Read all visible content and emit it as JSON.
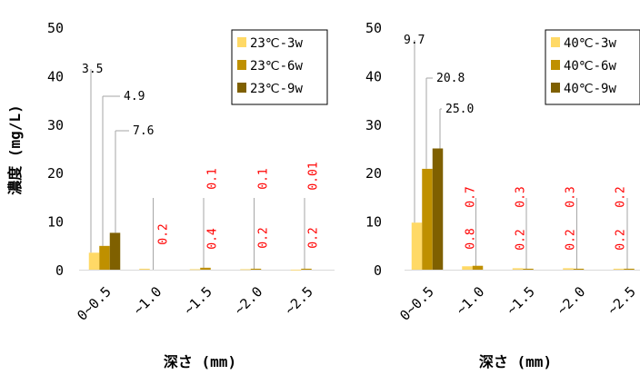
{
  "chart_data": [
    {
      "type": "bar",
      "categories": [
        "0~0.5",
        "~1.0",
        "~1.5",
        "~2.0",
        "~2.5"
      ],
      "ylabel": "濃度 (mg/L)",
      "xlabel": "深さ (mm)",
      "ylim": [
        0,
        50
      ],
      "yticks": [
        "0",
        "10",
        "20",
        "30",
        "40",
        "50"
      ],
      "legend_position": "top-right",
      "series": [
        {
          "name": "23℃-3w",
          "color": "#ffd966",
          "values": [
            3.5,
            0.2,
            0.1,
            0.1,
            0.01
          ],
          "labels": [
            "3.5",
            "0.2",
            "0.1",
            "0.1",
            "0.01"
          ]
        },
        {
          "name": "23℃-6w",
          "color": "#bf9000",
          "values": [
            4.9,
            0,
            0.4,
            0.2,
            0.2
          ],
          "labels": [
            "4.9",
            "",
            "0.4",
            "0.2",
            "0.2"
          ]
        },
        {
          "name": "23℃-9w",
          "color": "#7f6000",
          "values": [
            7.6,
            0,
            0,
            0,
            0
          ],
          "labels": [
            "7.6",
            "",
            "",
            "",
            ""
          ]
        }
      ]
    },
    {
      "type": "bar",
      "categories": [
        "0~0.5",
        "~1.0",
        "~1.5",
        "~2.0",
        "~2.5"
      ],
      "ylabel": "",
      "xlabel": "深さ (mm)",
      "ylim": [
        0,
        50
      ],
      "yticks": [
        "0",
        "10",
        "20",
        "30",
        "40",
        "50"
      ],
      "legend_position": "top-right",
      "series": [
        {
          "name": "40℃-3w",
          "color": "#ffd966",
          "values": [
            9.7,
            0.7,
            0.3,
            0.3,
            0.2
          ],
          "labels": [
            "9.7",
            "0.7",
            "0.3",
            "0.3",
            "0.2"
          ]
        },
        {
          "name": "40℃-6w",
          "color": "#bf9000",
          "values": [
            20.8,
            0.8,
            0.2,
            0.2,
            0.2
          ],
          "labels": [
            "20.8",
            "0.8",
            "0.2",
            "0.2",
            "0.2"
          ]
        },
        {
          "name": "40℃-9w",
          "color": "#7f6000",
          "values": [
            25.0,
            0,
            0,
            0,
            0
          ],
          "labels": [
            "25.0",
            "",
            "",
            "",
            ""
          ]
        }
      ]
    }
  ]
}
